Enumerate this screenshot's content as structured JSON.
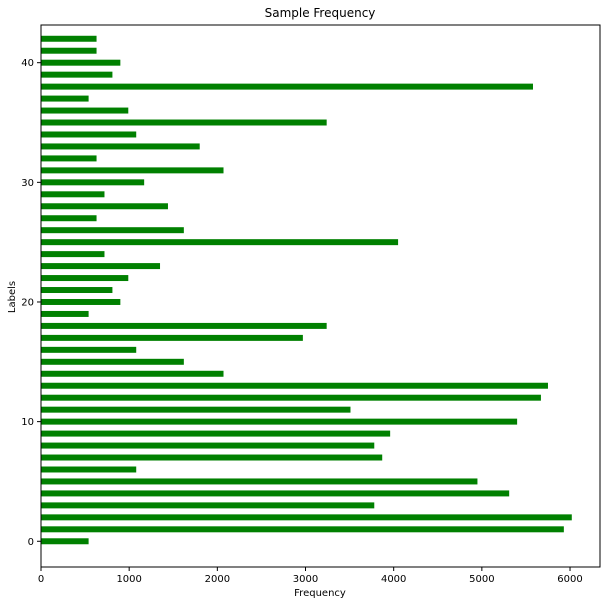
{
  "chart_data": {
    "type": "bar",
    "orientation": "horizontal",
    "title": "Sample Frequency",
    "xlabel": "Frequency",
    "ylabel": "Labels",
    "bar_color": "#008000",
    "xlim": [
      0,
      6340
    ],
    "ylim": [
      -2.15,
      43.15
    ],
    "xticks": [
      0,
      1000,
      2000,
      3000,
      4000,
      5000,
      6000
    ],
    "yticks": [
      0,
      10,
      20,
      30,
      40
    ],
    "grid": false,
    "categories": [
      0,
      1,
      2,
      3,
      4,
      5,
      6,
      7,
      8,
      9,
      10,
      11,
      12,
      13,
      14,
      15,
      16,
      17,
      18,
      19,
      20,
      21,
      22,
      23,
      24,
      25,
      26,
      27,
      28,
      29,
      30,
      31,
      32,
      33,
      34,
      35,
      36,
      37,
      38,
      39,
      40,
      41,
      42
    ],
    "values": [
      540,
      5930,
      6020,
      3780,
      5310,
      4950,
      1080,
      3870,
      3780,
      3960,
      5400,
      3510,
      5670,
      5750,
      2070,
      1620,
      1080,
      2970,
      3240,
      540,
      900,
      810,
      990,
      1350,
      720,
      4050,
      1620,
      630,
      1440,
      720,
      1170,
      2070,
      630,
      1800,
      1080,
      3240,
      990,
      540,
      5580,
      810,
      900,
      630,
      630
    ]
  }
}
